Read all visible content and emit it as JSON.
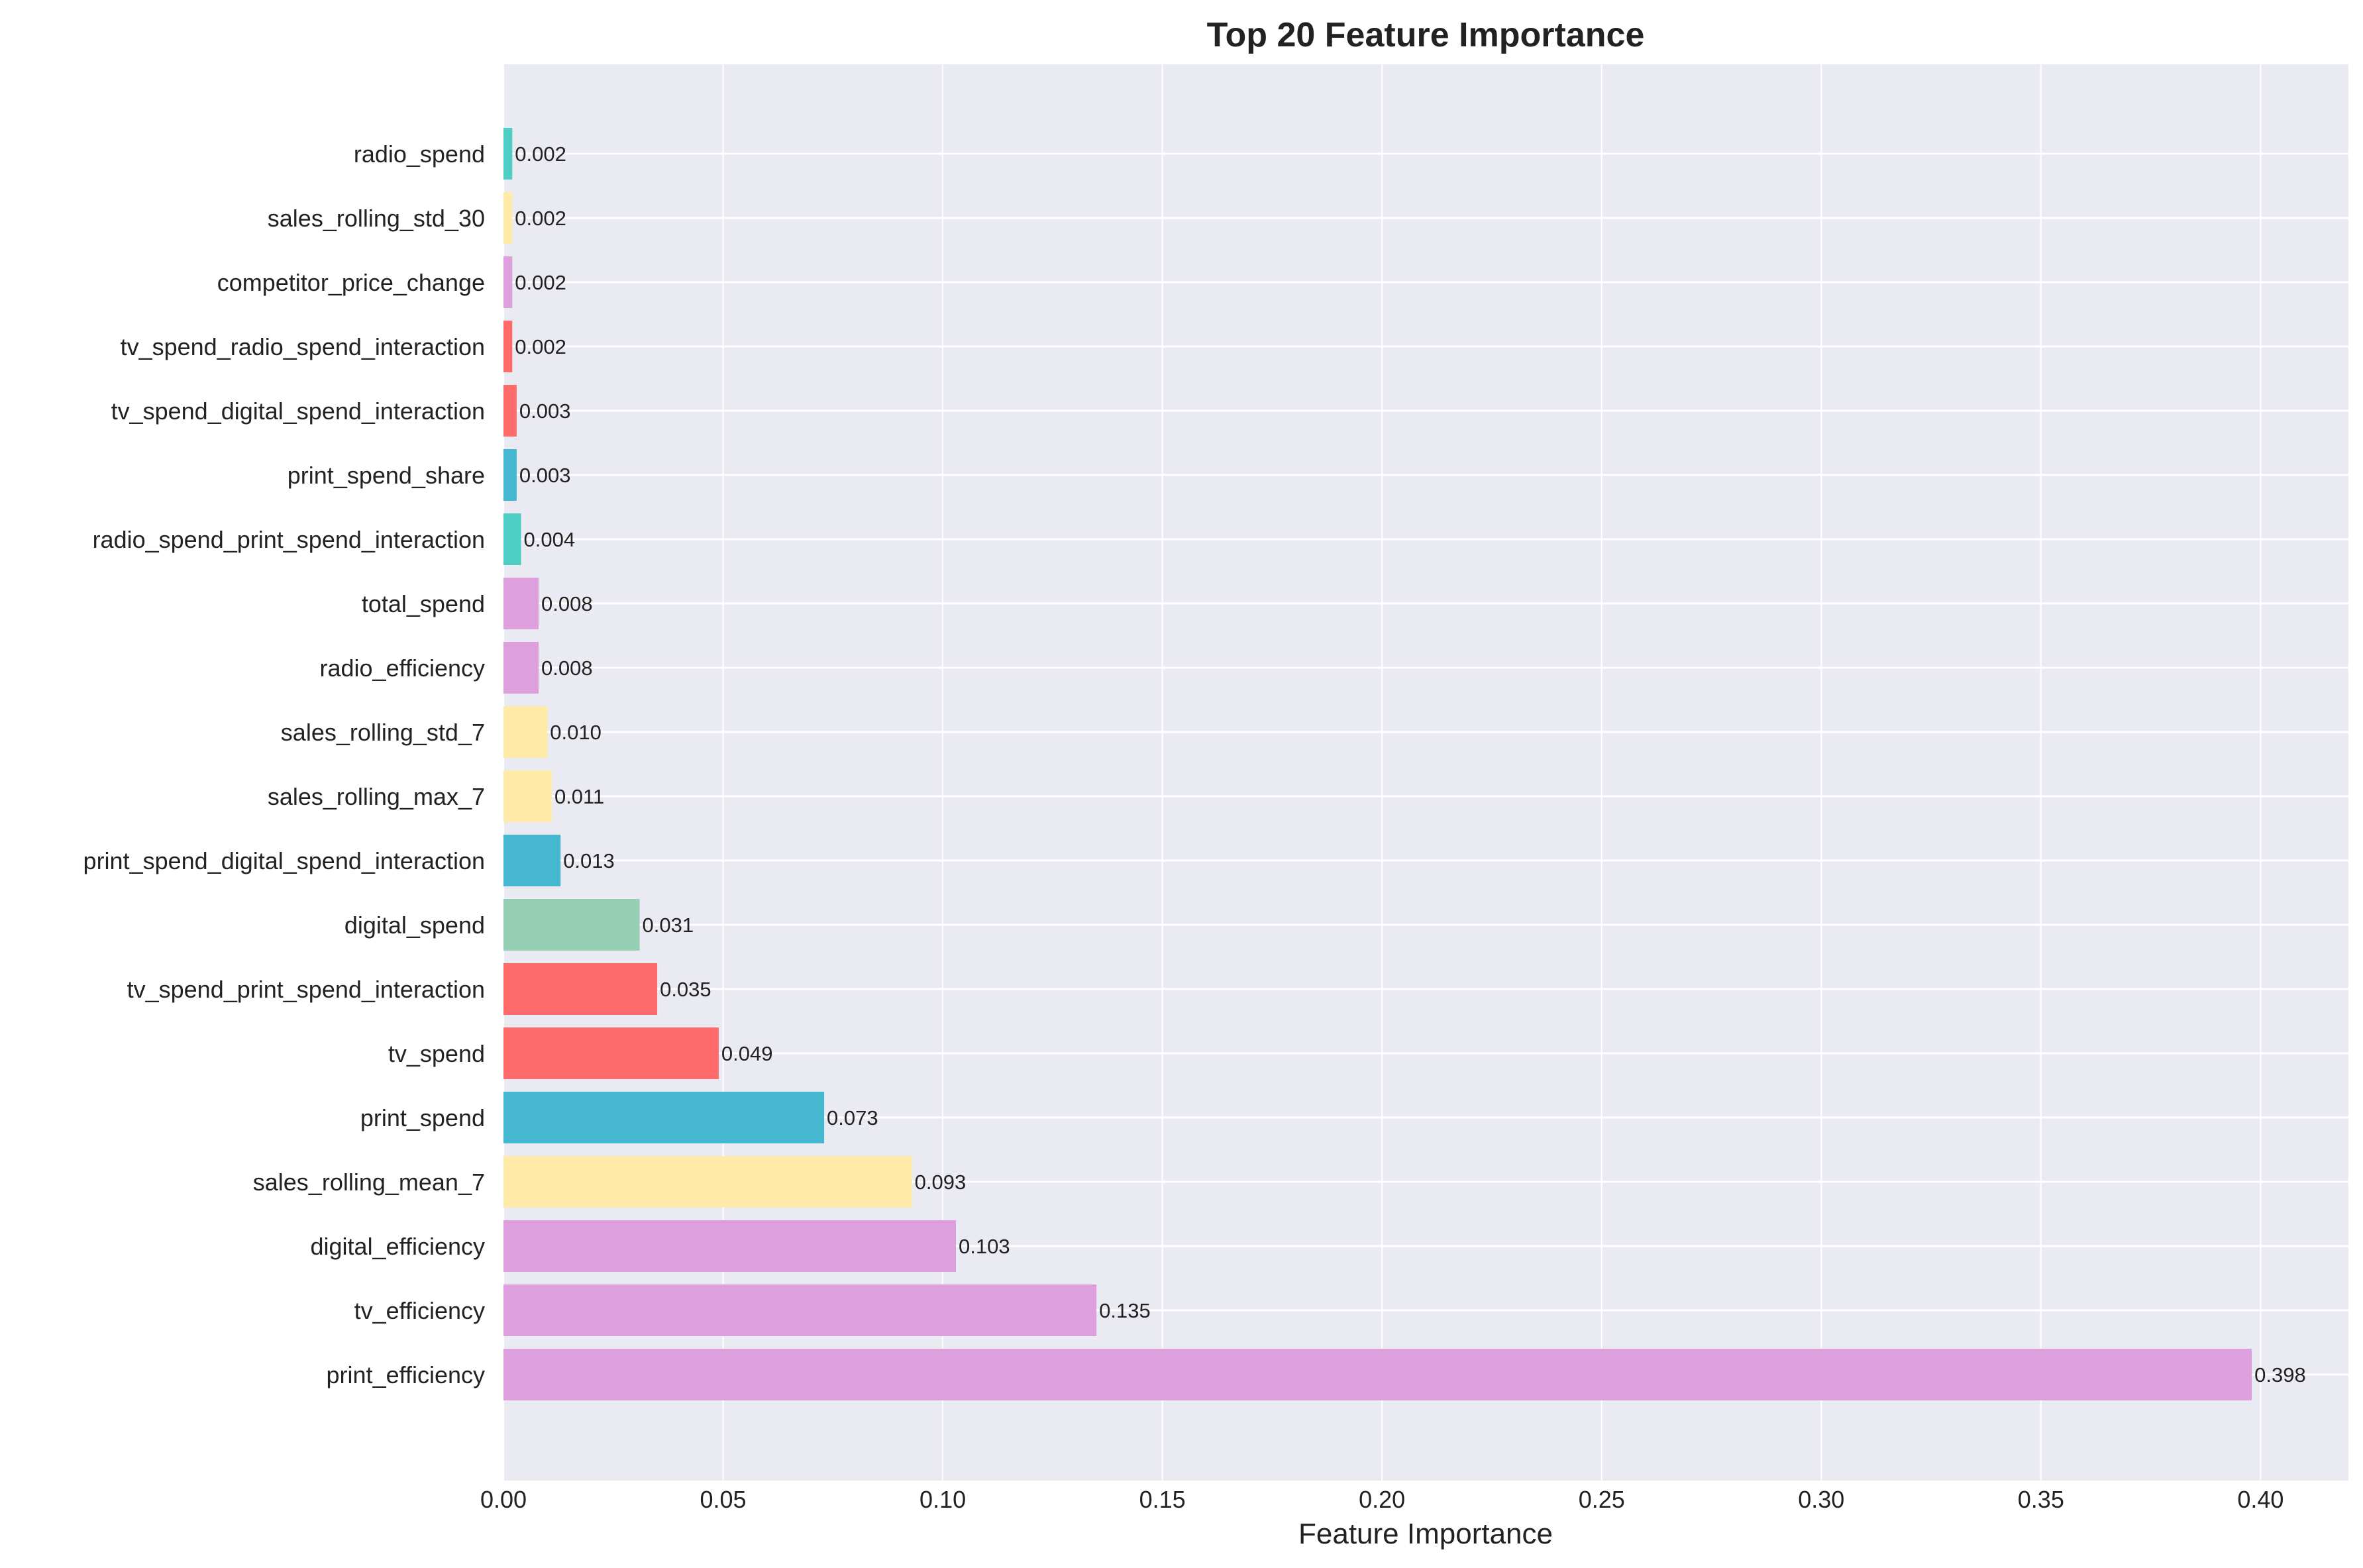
{
  "chart_data": {
    "type": "bar",
    "orientation": "horizontal",
    "title": "Top 20 Feature Importance",
    "xlabel": "Feature Importance",
    "ylabel": "",
    "xlim": [
      0,
      0.42
    ],
    "xticks": [
      0.0,
      0.05,
      0.1,
      0.15,
      0.2,
      0.25,
      0.3,
      0.35,
      0.4
    ],
    "xtick_labels": [
      "0.00",
      "0.05",
      "0.10",
      "0.15",
      "0.20",
      "0.25",
      "0.30",
      "0.35",
      "0.40"
    ],
    "grid": true,
    "categories": [
      "print_efficiency",
      "tv_efficiency",
      "digital_efficiency",
      "sales_rolling_mean_7",
      "print_spend",
      "tv_spend",
      "tv_spend_print_spend_interaction",
      "digital_spend",
      "print_spend_digital_spend_interaction",
      "sales_rolling_max_7",
      "sales_rolling_std_7",
      "radio_efficiency",
      "total_spend",
      "radio_spend_print_spend_interaction",
      "print_spend_share",
      "tv_spend_digital_spend_interaction",
      "tv_spend_radio_spend_interaction",
      "competitor_price_change",
      "sales_rolling_std_30",
      "radio_spend"
    ],
    "values": [
      0.398,
      0.135,
      0.103,
      0.093,
      0.073,
      0.049,
      0.035,
      0.031,
      0.013,
      0.011,
      0.01,
      0.008,
      0.008,
      0.004,
      0.003,
      0.003,
      0.002,
      0.002,
      0.002,
      0.002
    ],
    "value_labels": [
      "0.398",
      "0.135",
      "0.103",
      "0.093",
      "0.073",
      "0.049",
      "0.035",
      "0.031",
      "0.013",
      "0.011",
      "0.010",
      "0.008",
      "0.008",
      "0.004",
      "0.003",
      "0.003",
      "0.002",
      "0.002",
      "0.002",
      "0.002"
    ],
    "colors": [
      "#DDA0DD",
      "#DDA0DD",
      "#DDA0DD",
      "#FFEAA7",
      "#45B7D1",
      "#FF6B6B",
      "#FF6B6B",
      "#96CEB4",
      "#45B7D1",
      "#FFEAA7",
      "#FFEAA7",
      "#DDA0DD",
      "#DDA0DD",
      "#4ECDC4",
      "#45B7D1",
      "#FF6B6B",
      "#FF6B6B",
      "#DDA0DD",
      "#FFEAA7",
      "#4ECDC4"
    ],
    "background_color": "#EAEAF2",
    "grid_color": "#FFFFFF"
  }
}
